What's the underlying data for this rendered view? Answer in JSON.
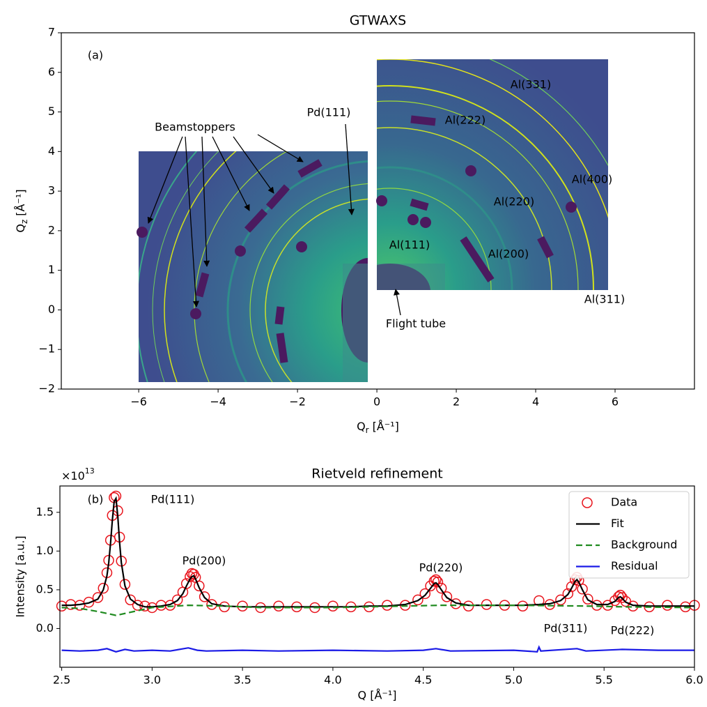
{
  "chart_data": [
    {
      "type": "image",
      "title": "GTWAXS",
      "xlabel": {
        "text": "Q",
        "sub": "r",
        "unit": "[Å⁻¹]"
      },
      "ylabel": {
        "text": "Q",
        "sub": "z",
        "unit": "[Å⁻¹]"
      },
      "xlim": [
        -7.95,
        8.0
      ],
      "ylim": [
        -2,
        7
      ],
      "xticks": [
        {
          "value": -6,
          "label": "−6"
        },
        {
          "value": -4,
          "label": "−4"
        },
        {
          "value": -2,
          "label": "−2"
        },
        0,
        2,
        4,
        6
      ],
      "yticks": [
        {
          "value": -2,
          "label": "−2"
        },
        {
          "value": -1,
          "label": "−1"
        },
        0,
        1,
        2,
        3,
        4,
        5,
        6,
        7
      ],
      "annotations": [
        "(a)",
        "Beamstoppers",
        "Pd(111)",
        "Al(331)",
        "Al(222)",
        "Al(400)",
        "Al(220)",
        "Al(111)",
        "Al(200)",
        "Al(311)",
        "Flight tube"
      ]
    },
    {
      "type": "line",
      "title": "Rietveld refinement",
      "xlabel": "Q [Å⁻¹]",
      "ylabel": "Intensity [a.u.]",
      "offset_text": {
        "base": "×10",
        "exp": "13"
      },
      "xlim": [
        2.49,
        6.0
      ],
      "ylim": [
        -0.5,
        1.84
      ],
      "xticks": [
        2.5,
        {
          "value": 3,
          "label": "3.0"
        },
        3.5,
        {
          "value": 4,
          "label": "4.0"
        },
        4.5,
        {
          "value": 5,
          "label": "5.0"
        },
        5.5,
        {
          "value": 6,
          "label": "6.0"
        }
      ],
      "yticks": [
        {
          "value": 0,
          "label": "0.0"
        },
        0.5,
        {
          "value": 1,
          "label": "1.0"
        },
        1.5
      ],
      "legend": "upper right",
      "annotations": [
        "(b)",
        "Pd(111)",
        "Pd(200)",
        "Pd(220)",
        "Pd(311)",
        "Pd(222)"
      ],
      "x": [
        2.5,
        2.55,
        2.6,
        2.65,
        2.7,
        2.73,
        2.75,
        2.76,
        2.77,
        2.78,
        2.79,
        2.8,
        2.81,
        2.82,
        2.83,
        2.85,
        2.88,
        2.92,
        2.96,
        3.0,
        3.05,
        3.1,
        3.14,
        3.17,
        3.19,
        3.21,
        3.22,
        3.23,
        3.24,
        3.26,
        3.29,
        3.33,
        3.4,
        3.5,
        3.6,
        3.7,
        3.8,
        3.9,
        4.0,
        4.1,
        4.2,
        4.3,
        4.4,
        4.47,
        4.51,
        4.54,
        4.56,
        4.57,
        4.58,
        4.6,
        4.63,
        4.68,
        4.75,
        4.85,
        4.95,
        5.05,
        5.14,
        5.2,
        5.26,
        5.3,
        5.32,
        5.34,
        5.35,
        5.36,
        5.38,
        5.41,
        5.46,
        5.52,
        5.56,
        5.58,
        5.59,
        5.6,
        5.62,
        5.66,
        5.75,
        5.85,
        5.95,
        6.0
      ],
      "series": [
        {
          "name": "Data",
          "color": "#e8141c",
          "marker": "circle-open",
          "values": [
            0.29,
            0.31,
            0.3,
            0.34,
            0.4,
            0.52,
            0.72,
            0.88,
            1.14,
            1.46,
            1.69,
            1.71,
            1.52,
            1.18,
            0.87,
            0.57,
            0.37,
            0.3,
            0.29,
            0.27,
            0.3,
            0.3,
            0.37,
            0.47,
            0.58,
            0.67,
            0.71,
            0.7,
            0.66,
            0.55,
            0.41,
            0.31,
            0.28,
            0.29,
            0.27,
            0.29,
            0.28,
            0.27,
            0.29,
            0.28,
            0.28,
            0.3,
            0.3,
            0.37,
            0.45,
            0.55,
            0.61,
            0.63,
            0.6,
            0.52,
            0.41,
            0.32,
            0.29,
            0.31,
            0.3,
            0.29,
            0.36,
            0.31,
            0.37,
            0.45,
            0.54,
            0.63,
            0.66,
            0.62,
            0.51,
            0.38,
            0.3,
            0.3,
            0.36,
            0.41,
            0.43,
            0.4,
            0.35,
            0.29,
            0.28,
            0.3,
            0.28,
            0.3
          ]
        },
        {
          "name": "Fit",
          "color": "#000000",
          "values": [
            0.3,
            0.3,
            0.31,
            0.33,
            0.38,
            0.5,
            0.68,
            0.85,
            1.1,
            1.4,
            1.64,
            1.68,
            1.45,
            1.12,
            0.85,
            0.55,
            0.38,
            0.31,
            0.28,
            0.28,
            0.29,
            0.31,
            0.36,
            0.45,
            0.55,
            0.64,
            0.67,
            0.68,
            0.64,
            0.53,
            0.4,
            0.32,
            0.29,
            0.28,
            0.28,
            0.28,
            0.28,
            0.28,
            0.28,
            0.28,
            0.29,
            0.29,
            0.31,
            0.36,
            0.43,
            0.52,
            0.58,
            0.59,
            0.57,
            0.5,
            0.4,
            0.33,
            0.3,
            0.3,
            0.3,
            0.3,
            0.31,
            0.32,
            0.36,
            0.44,
            0.52,
            0.61,
            0.63,
            0.6,
            0.5,
            0.37,
            0.31,
            0.31,
            0.35,
            0.4,
            0.41,
            0.39,
            0.34,
            0.3,
            0.29,
            0.29,
            0.29,
            0.29
          ]
        },
        {
          "name": "Background",
          "color": "#1f8a1f",
          "dash": true,
          "x": [
            2.5,
            2.6,
            2.7,
            2.8,
            2.9,
            3.0,
            3.2,
            3.4,
            3.6,
            4.0,
            4.4,
            4.6,
            5.0,
            5.4,
            5.6,
            6.0
          ],
          "values": [
            0.27,
            0.26,
            0.22,
            0.17,
            0.22,
            0.27,
            0.3,
            0.29,
            0.27,
            0.27,
            0.29,
            0.3,
            0.3,
            0.29,
            0.28,
            0.27
          ]
        },
        {
          "name": "Residual",
          "color": "#1a1ae6",
          "x": [
            2.5,
            2.6,
            2.7,
            2.75,
            2.8,
            2.85,
            2.9,
            3.0,
            3.1,
            3.2,
            3.25,
            3.3,
            3.5,
            3.7,
            4.0,
            4.3,
            4.5,
            4.57,
            4.65,
            5.0,
            5.13,
            5.14,
            5.15,
            5.35,
            5.4,
            5.6,
            5.8,
            6.0
          ],
          "values": [
            -0.28,
            -0.29,
            -0.28,
            -0.26,
            -0.3,
            -0.27,
            -0.29,
            -0.28,
            -0.29,
            -0.25,
            -0.28,
            -0.29,
            -0.28,
            -0.29,
            -0.28,
            -0.29,
            -0.28,
            -0.26,
            -0.29,
            -0.28,
            -0.3,
            -0.24,
            -0.29,
            -0.26,
            -0.29,
            -0.27,
            -0.28,
            -0.28
          ]
        }
      ]
    }
  ]
}
